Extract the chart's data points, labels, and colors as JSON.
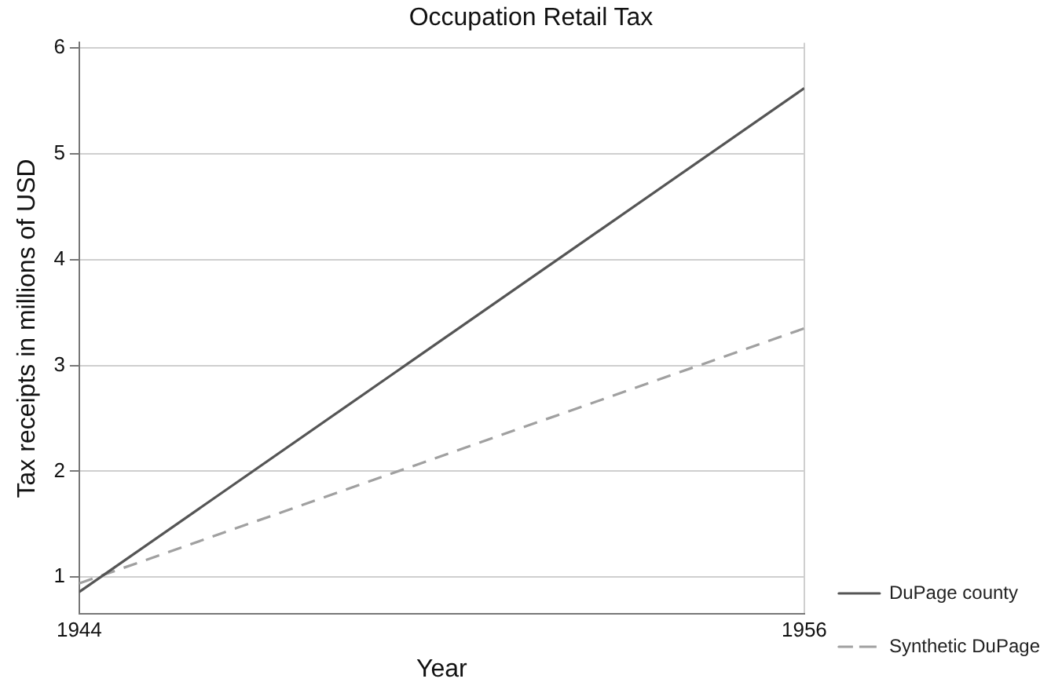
{
  "chart_data": {
    "type": "line",
    "title": "Occupation Retail Tax",
    "xlabel": "Year",
    "ylabel": "Tax receipts in millions of USD",
    "x": [
      1944,
      1956
    ],
    "xlim": [
      1944,
      1956
    ],
    "xticks": [
      1944,
      1956
    ],
    "ylim": [
      0.65,
      6.05
    ],
    "yticks": [
      1,
      2,
      3,
      4,
      5,
      6
    ],
    "series": [
      {
        "name": "DuPage county",
        "color": "#555555",
        "values": [
          0.86,
          5.62
        ],
        "line_style": "solid"
      },
      {
        "name": "Synthetic DuPage",
        "color": "#a0a0a0",
        "values": [
          0.94,
          3.35
        ],
        "line_style": "dashed"
      }
    ],
    "grid": true,
    "legend": "bottom right",
    "marker": "none"
  }
}
